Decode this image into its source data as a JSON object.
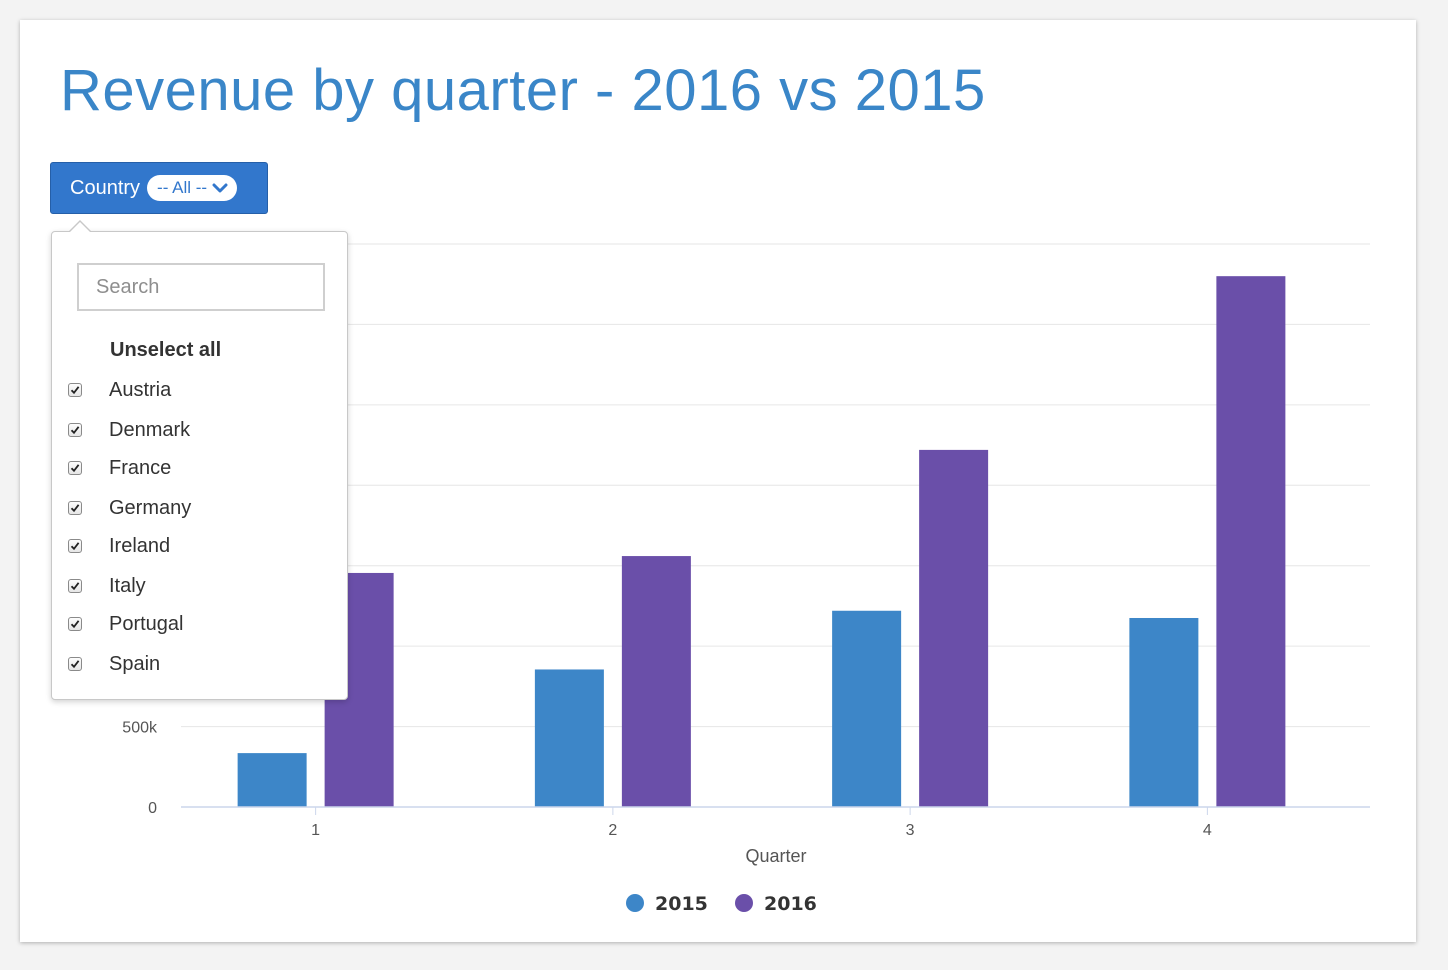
{
  "page": {
    "title": "Revenue by quarter - 2016 vs 2015"
  },
  "filter": {
    "label": "Country",
    "value": "-- All --",
    "search_placeholder": "Search",
    "unselect_all": "Unselect all",
    "options": [
      {
        "label": "Austria",
        "checked": true
      },
      {
        "label": "Denmark",
        "checked": true
      },
      {
        "label": "France",
        "checked": true
      },
      {
        "label": "Germany",
        "checked": true
      },
      {
        "label": "Ireland",
        "checked": true
      },
      {
        "label": "Italy",
        "checked": true
      },
      {
        "label": "Portugal",
        "checked": true
      },
      {
        "label": "Spain",
        "checked": true
      }
    ]
  },
  "chart_data": {
    "type": "bar",
    "title": "Revenue by quarter - 2016 vs 2015",
    "xlabel": "Quarter",
    "ylabel": "",
    "categories": [
      "1",
      "2",
      "3",
      "4"
    ],
    "series": [
      {
        "name": "2015",
        "color": "#3d86c8",
        "values": [
          335000,
          855000,
          1220000,
          1175000
        ]
      },
      {
        "name": "2016",
        "color": "#6a4fa9",
        "values": [
          1455000,
          1560000,
          2220000,
          3300000
        ]
      }
    ],
    "ylim": [
      0,
      3500000
    ],
    "yticks": [
      {
        "value": 0,
        "label": "0"
      },
      {
        "value": 500000,
        "label": "500k"
      }
    ],
    "grid": true,
    "legend": "bottom-center"
  }
}
